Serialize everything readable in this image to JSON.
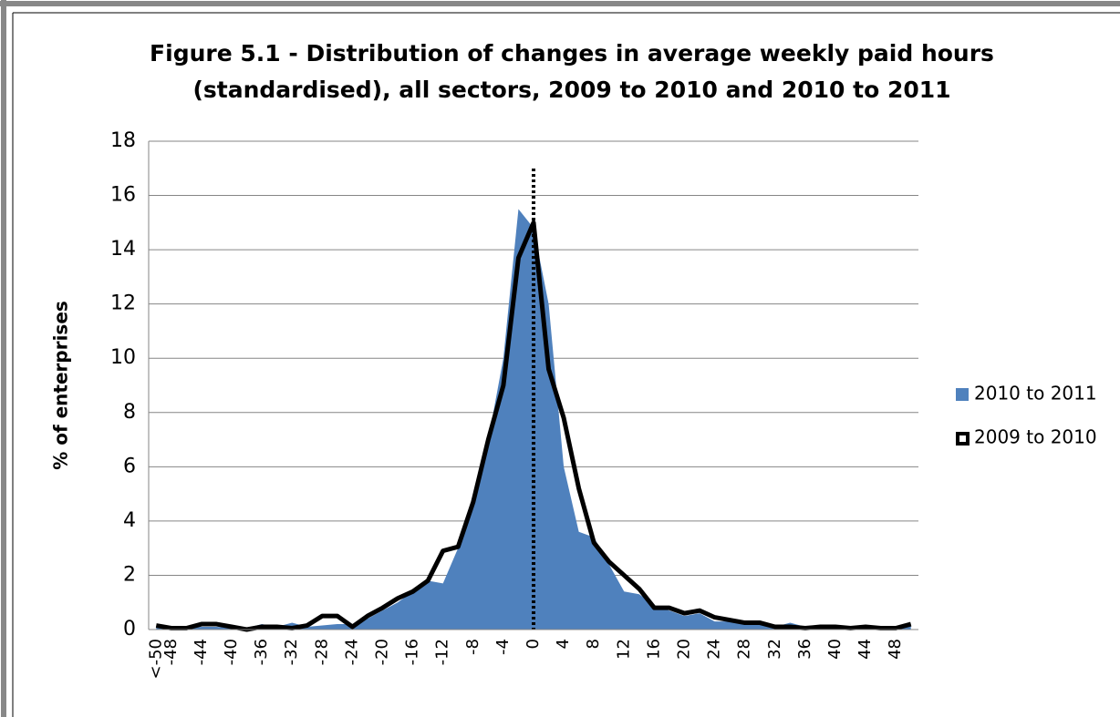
{
  "chart_data": {
    "type": "area-line",
    "title": "Figure 5.1 - Distribution of changes in average weekly paid hours",
    "subtitle": "(standardised), all sectors, 2009 to 2010 and 2010 to 2011",
    "y_label": "% of enterprises",
    "categories": [
      "<-50",
      "-48",
      null,
      "-44",
      null,
      "-40",
      null,
      "-36",
      null,
      "-32",
      null,
      "-28",
      null,
      "-24",
      null,
      "-20",
      null,
      "-16",
      null,
      "-12",
      null,
      "-8",
      null,
      "-4",
      null,
      "0",
      null,
      "4",
      null,
      "8",
      null,
      "12",
      null,
      "16",
      null,
      "20",
      null,
      "24",
      null,
      "28",
      null,
      "32",
      null,
      "36",
      null,
      "40",
      null,
      "44",
      null,
      "48",
      null
    ],
    "series": [
      {
        "name": "2010 to 2011",
        "color": "#4f81bd",
        "style": "area",
        "values": [
          0.1,
          0.05,
          0.05,
          0.1,
          0.1,
          0.05,
          0.05,
          0.2,
          0.1,
          0.25,
          0.1,
          0.15,
          0.2,
          0.2,
          0.4,
          0.7,
          1.0,
          1.4,
          1.8,
          1.7,
          3.0,
          4.8,
          7.0,
          10.0,
          15.5,
          14.8,
          12.0,
          6.0,
          3.6,
          3.4,
          2.4,
          1.4,
          1.3,
          0.9,
          0.7,
          0.5,
          0.6,
          0.3,
          0.3,
          0.2,
          0.2,
          0.1,
          0.25,
          0.1,
          0.1,
          0.1,
          0.05,
          0.1,
          0.05,
          0.1,
          0.2
        ]
      },
      {
        "name": "2009 to 2010",
        "color": "#000000",
        "style": "line",
        "values": [
          0.15,
          0.05,
          0.05,
          0.2,
          0.2,
          0.1,
          0.0,
          0.1,
          0.1,
          0.05,
          0.15,
          0.5,
          0.5,
          0.1,
          0.5,
          0.8,
          1.15,
          1.4,
          1.8,
          2.9,
          3.05,
          4.7,
          7.0,
          9.0,
          13.7,
          15.0,
          9.6,
          7.8,
          5.2,
          3.2,
          2.5,
          2.0,
          1.5,
          0.8,
          0.8,
          0.6,
          0.7,
          0.45,
          0.35,
          0.25,
          0.25,
          0.1,
          0.1,
          0.05,
          0.1,
          0.1,
          0.05,
          0.1,
          0.05,
          0.05,
          0.2
        ]
      }
    ],
    "reference_line": "0",
    "ylim": [
      0,
      18
    ],
    "yticks": [
      0,
      2,
      4,
      6,
      8,
      10,
      12,
      14,
      16,
      18
    ],
    "grid": true,
    "legend": "right"
  }
}
